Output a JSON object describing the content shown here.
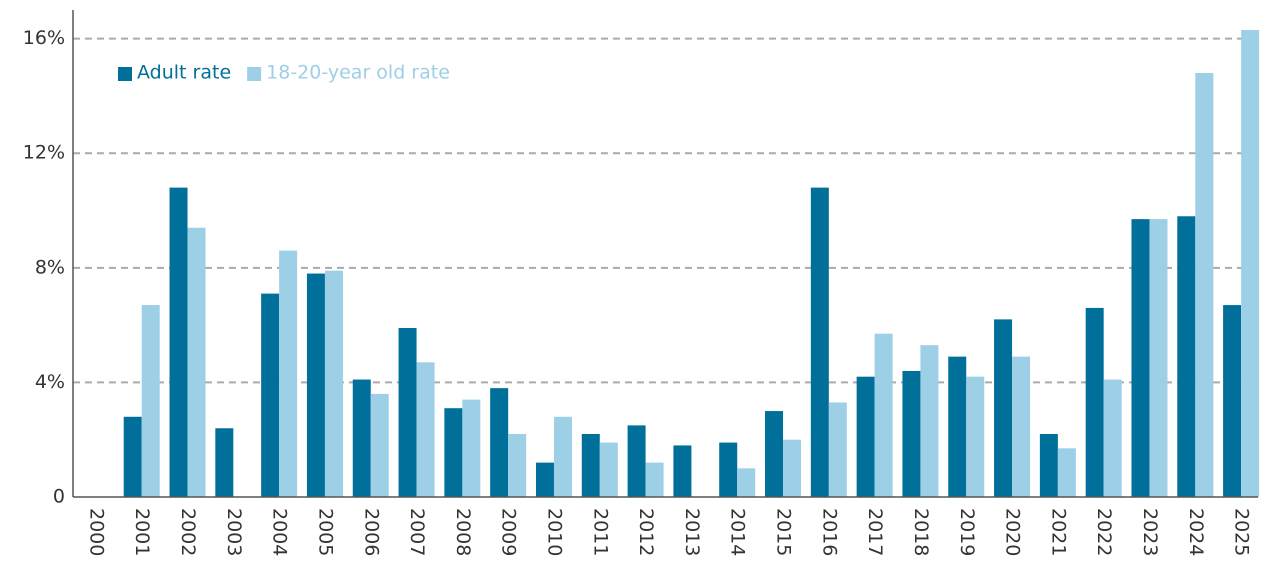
{
  "chart_data": {
    "type": "bar",
    "categories": [
      "2000",
      "2001",
      "2002",
      "2003",
      "2004",
      "2005",
      "2006",
      "2007",
      "2008",
      "2009",
      "2010",
      "2011",
      "2012",
      "2013",
      "2014",
      "2015",
      "2016",
      "2017",
      "2018",
      "2019",
      "2020",
      "2021",
      "2022",
      "2023",
      "2024",
      "2025"
    ],
    "series": [
      {
        "name": "Adult rate",
        "color": "#00709a",
        "values": [
          null,
          2.8,
          10.8,
          2.4,
          7.1,
          7.8,
          4.1,
          5.9,
          3.1,
          3.8,
          1.2,
          2.2,
          2.5,
          1.8,
          1.9,
          3.0,
          10.8,
          4.2,
          4.4,
          4.9,
          6.2,
          2.2,
          6.6,
          9.7,
          9.8,
          6.7
        ]
      },
      {
        "name": "18-20-year old rate",
        "color": "#9dcfe6",
        "values": [
          null,
          6.7,
          9.4,
          null,
          8.6,
          7.9,
          3.6,
          4.7,
          3.4,
          2.2,
          2.8,
          1.9,
          1.2,
          null,
          1.0,
          2.0,
          3.3,
          5.7,
          5.3,
          4.2,
          4.9,
          1.7,
          4.1,
          9.7,
          14.8,
          16.3
        ]
      }
    ],
    "ylim": [
      0,
      17
    ],
    "yticks": [
      0,
      {
        "value": 4,
        "label": "4%"
      },
      {
        "value": 8,
        "label": "8%"
      },
      {
        "value": 12,
        "label": "12%"
      },
      {
        "value": 16,
        "label": "16%"
      }
    ],
    "grid": true,
    "legend": "top-left"
  }
}
